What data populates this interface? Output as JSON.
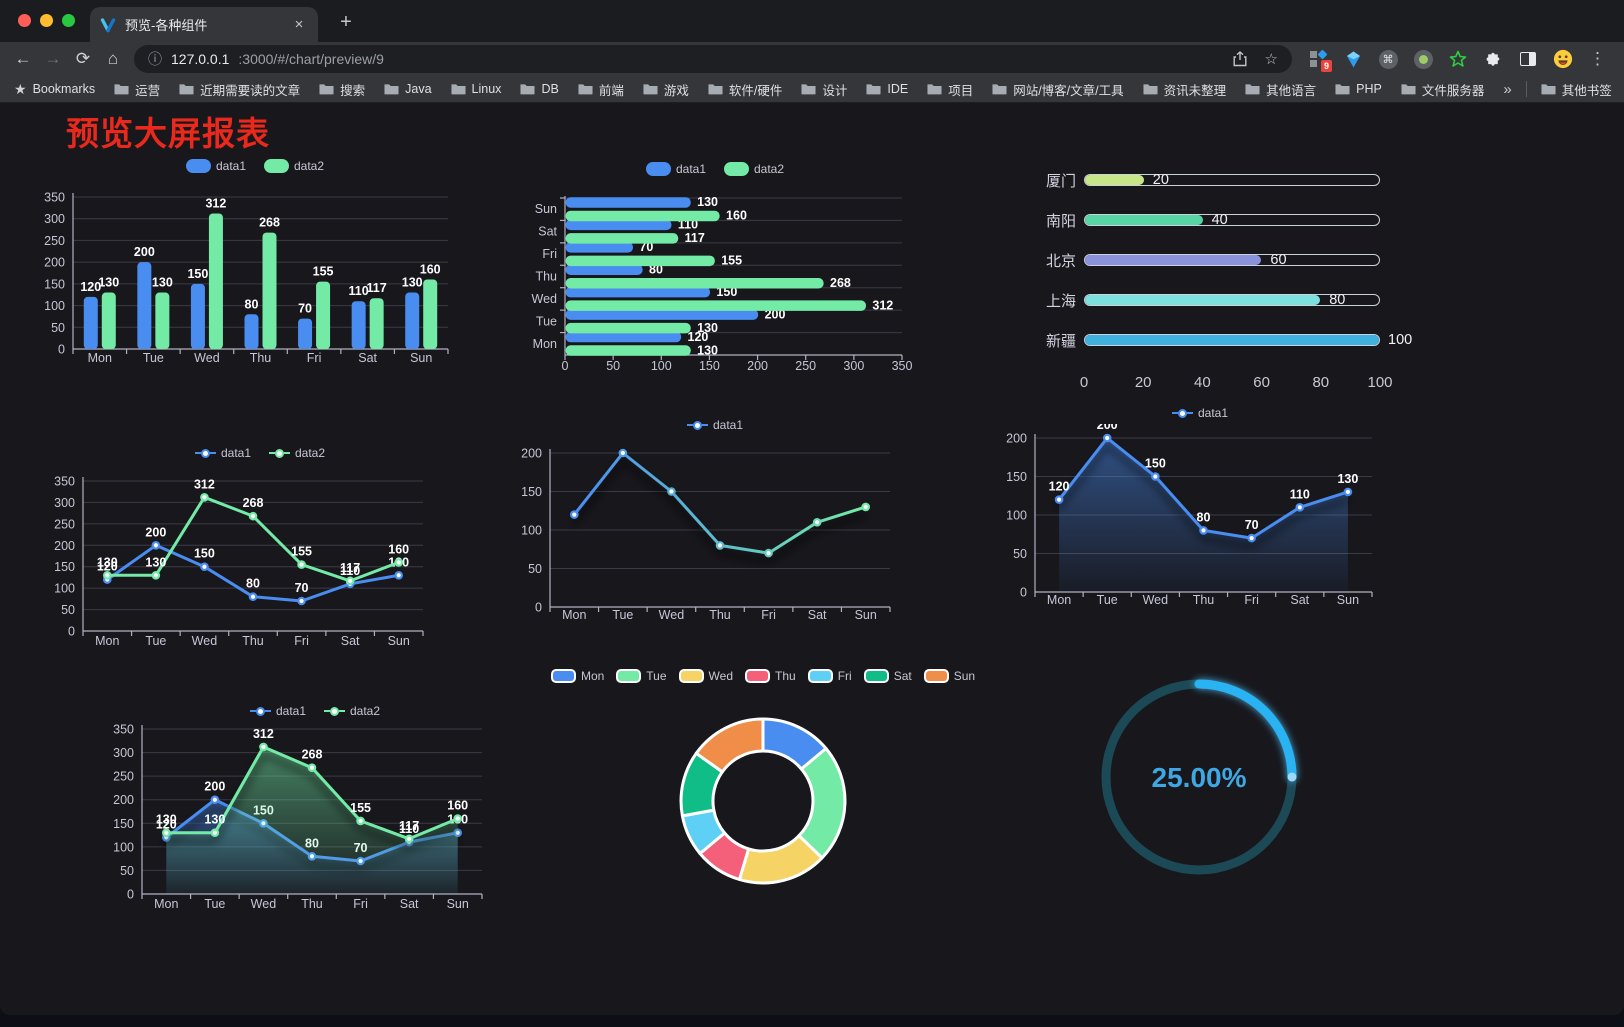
{
  "browser": {
    "tab_title": "预览-各种组件",
    "tab_close": "×",
    "new_tab_label": "+",
    "back_icon": "←",
    "forward_icon": "→",
    "reload_icon": "⟳",
    "home_icon": "⌂",
    "info_icon": "ⓘ",
    "star_icon": "☆",
    "url_host": "127.0.0.1",
    "url_rest": ":3000/#/chart/preview/9",
    "bookmarks_label": "Bookmarks",
    "bookmarks": [
      "运营",
      "近期需要读的文章",
      "搜索",
      "Java",
      "Linux",
      "DB",
      "前端",
      "游戏",
      "软件/硬件",
      "设计",
      "IDE",
      "项目",
      "网站/博客/文章/工具",
      "资讯未整理",
      "其他语言",
      "PHP",
      "文件服务器"
    ],
    "bookmarks_overflow": "»",
    "other_bookmarks_label": "其他书签",
    "extension_badge_count": "9",
    "command_glyph": "⌘",
    "menu_icon": "⋮"
  },
  "page": {
    "title": "预览大屏报表"
  },
  "chart_data": [
    {
      "id": "bar-vertical",
      "type": "bar",
      "categories": [
        "Mon",
        "Tue",
        "Wed",
        "Thu",
        "Fri",
        "Sat",
        "Sun"
      ],
      "series": [
        {
          "name": "data1",
          "color": "#4A8DF1",
          "values": [
            120,
            200,
            150,
            80,
            70,
            110,
            130
          ]
        },
        {
          "name": "data2",
          "color": "#73EBA6",
          "values": [
            130,
            130,
            312,
            268,
            155,
            117,
            160
          ]
        }
      ],
      "ylim": [
        0,
        350
      ],
      "ytick": 50,
      "legend_position": "top",
      "grid": true
    },
    {
      "id": "bar-horizontal",
      "type": "bar-horizontal",
      "categories": [
        "Mon",
        "Tue",
        "Wed",
        "Thu",
        "Fri",
        "Sat",
        "Sun"
      ],
      "series": [
        {
          "name": "data1",
          "color": "#4A8DF1",
          "values": [
            120,
            200,
            150,
            80,
            70,
            110,
            130
          ]
        },
        {
          "name": "data2",
          "color": "#73EBA6",
          "values": [
            130,
            130,
            312,
            268,
            155,
            117,
            160
          ]
        }
      ],
      "xlim": [
        0,
        350
      ],
      "xtick": 50,
      "legend_position": "top",
      "grid": true
    },
    {
      "id": "progress-bars",
      "type": "bar-progress",
      "xlim": [
        0,
        100
      ],
      "xticks": [
        0,
        20,
        40,
        60,
        80,
        100
      ],
      "rows": [
        {
          "label": "厦门",
          "value": 20,
          "color": "#C6E687"
        },
        {
          "label": "南阳",
          "value": 40,
          "color": "#58D5A5"
        },
        {
          "label": "北京",
          "value": 60,
          "color": "#8A92DC"
        },
        {
          "label": "上海",
          "value": 80,
          "color": "#7CE0DF"
        },
        {
          "label": "新疆",
          "value": 100,
          "color": "#3EB1DF"
        }
      ]
    },
    {
      "id": "line-two-series",
      "type": "line",
      "labels": true,
      "categories": [
        "Mon",
        "Tue",
        "Wed",
        "Thu",
        "Fri",
        "Sat",
        "Sun"
      ],
      "series": [
        {
          "name": "data1",
          "color": "#4A8DF1",
          "values": [
            120,
            200,
            150,
            80,
            70,
            110,
            130
          ]
        },
        {
          "name": "data2",
          "color": "#73EBA6",
          "values": [
            130,
            130,
            312,
            268,
            155,
            117,
            160
          ]
        }
      ],
      "ylim": [
        0,
        350
      ],
      "ytick": 50,
      "legend_position": "top",
      "grid": true
    },
    {
      "id": "line-gradient",
      "type": "line",
      "labels": false,
      "categories": [
        "Mon",
        "Tue",
        "Wed",
        "Thu",
        "Fri",
        "Sat",
        "Sun"
      ],
      "series": [
        {
          "name": "data1",
          "color": "#4A8DF1",
          "color_gradient": [
            "#4A8DF1",
            "#73EBA6"
          ],
          "values": [
            120,
            200,
            150,
            80,
            70,
            110,
            130
          ]
        }
      ],
      "ylim": [
        0,
        200
      ],
      "ytick": 50,
      "legend_position": "top",
      "grid": true
    },
    {
      "id": "area-single",
      "type": "area",
      "labels": true,
      "categories": [
        "Mon",
        "Tue",
        "Wed",
        "Thu",
        "Fri",
        "Sat",
        "Sun"
      ],
      "series": [
        {
          "name": "data1",
          "color": "#4A8DF1",
          "values": [
            120,
            200,
            150,
            80,
            70,
            110,
            130
          ]
        }
      ],
      "ylim": [
        0,
        200
      ],
      "ytick": 50,
      "legend_position": "top",
      "grid": true
    },
    {
      "id": "area-two",
      "type": "area",
      "labels": true,
      "categories": [
        "Mon",
        "Tue",
        "Wed",
        "Thu",
        "Fri",
        "Sat",
        "Sun"
      ],
      "series": [
        {
          "name": "data1",
          "color": "#4A8DF1",
          "values": [
            120,
            200,
            150,
            80,
            70,
            110,
            130
          ]
        },
        {
          "name": "data2",
          "color": "#73EBA6",
          "values": [
            130,
            130,
            312,
            268,
            155,
            117,
            160
          ]
        }
      ],
      "ylim": [
        0,
        350
      ],
      "ytick": 50,
      "legend_position": "top",
      "grid": true
    },
    {
      "id": "donut",
      "type": "pie",
      "inner_radius_ratio": 0.61,
      "legend_position": "top",
      "items": [
        {
          "label": "Mon",
          "value": 120,
          "color": "#4A8DF1"
        },
        {
          "label": "Tue",
          "value": 200,
          "color": "#73EBA6"
        },
        {
          "label": "Wed",
          "value": 150,
          "color": "#F5D365"
        },
        {
          "label": "Thu",
          "value": 80,
          "color": "#F4607A"
        },
        {
          "label": "Fri",
          "value": 70,
          "color": "#5FD0F5"
        },
        {
          "label": "Sat",
          "value": 110,
          "color": "#10BD86"
        },
        {
          "label": "Sun",
          "value": 130,
          "color": "#F08E49"
        }
      ]
    },
    {
      "id": "gauge",
      "type": "gauge",
      "value": 25,
      "label": "25.00%",
      "color": "#2BB3F2",
      "track_color": "#1C4956",
      "text_color": "#3FA7E4"
    }
  ]
}
